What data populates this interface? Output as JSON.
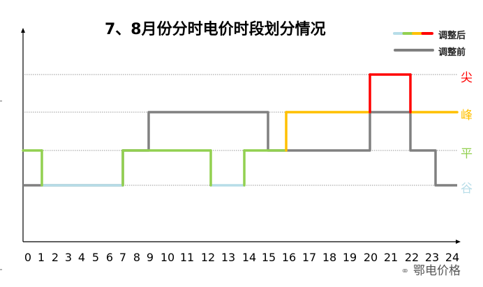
{
  "chart_data": {
    "type": "line",
    "title": "7、8月份分时电价时段划分情况",
    "x_ticks": [
      "0",
      "1",
      "2",
      "3",
      "4",
      "5",
      "6",
      "7",
      "8",
      "9",
      "10",
      "11",
      "12",
      "13",
      "14",
      "15",
      "16",
      "17",
      "18",
      "19",
      "20",
      "21",
      "22",
      "23",
      "24"
    ],
    "xlim": [
      0,
      24
    ],
    "levels": [
      "谷",
      "平",
      "峰",
      "尖"
    ],
    "level_colors": {
      "谷": "#b7dde8",
      "平": "#92d050",
      "峰": "#ffc000",
      "尖": "#ff0000"
    },
    "grid": "dotted horizontal at each level",
    "legend_placement": "top-right",
    "series": [
      {
        "name": "调整后",
        "colors": [
          "#b7dde8",
          "#92d050",
          "#ffc000",
          "#ff0000"
        ],
        "segments": [
          {
            "start": 0,
            "end": 1,
            "level": "平"
          },
          {
            "start": 1,
            "end": 7,
            "level": "谷"
          },
          {
            "start": 7,
            "end": 12,
            "level": "平"
          },
          {
            "start": 12,
            "end": 14,
            "level": "谷"
          },
          {
            "start": 14,
            "end": 16,
            "level": "平"
          },
          {
            "start": 16,
            "end": 20,
            "level": "峰"
          },
          {
            "start": 20,
            "end": 22,
            "level": "尖"
          },
          {
            "start": 22,
            "end": 24,
            "level": "峰"
          }
        ]
      },
      {
        "name": "调整前",
        "color": "#808080",
        "segments": [
          {
            "start": 0,
            "end": 7,
            "level": "谷"
          },
          {
            "start": 7,
            "end": 9,
            "level": "平"
          },
          {
            "start": 9,
            "end": 15,
            "level": "峰"
          },
          {
            "start": 15,
            "end": 20,
            "level": "平"
          },
          {
            "start": 20,
            "end": 22,
            "level": "峰"
          },
          {
            "start": 22,
            "end": 23,
            "level": "平"
          },
          {
            "start": 23,
            "end": 24,
            "level": "谷"
          }
        ]
      }
    ]
  },
  "watermark": "鄂电价格"
}
